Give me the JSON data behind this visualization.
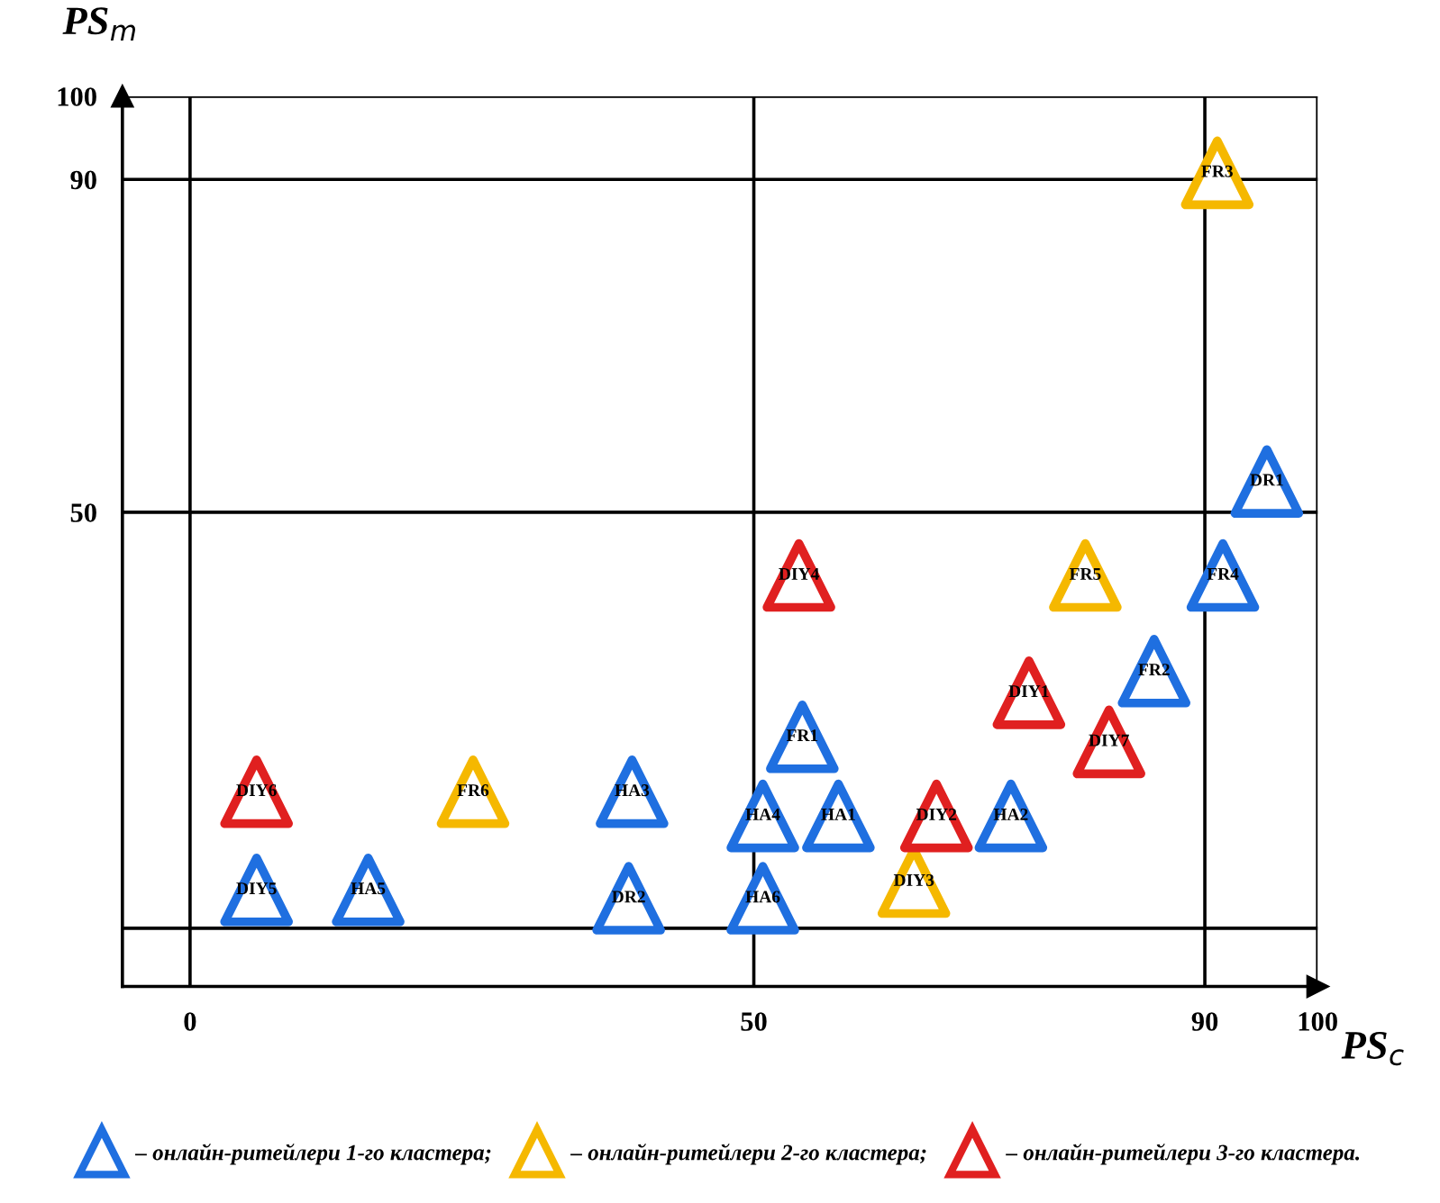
{
  "chart_data": {
    "type": "scatter",
    "xlabel": "PS$_{c}$",
    "ylabel": "PS$_{m}$",
    "xlim": [
      -6,
      100
    ],
    "ylim": [
      -7,
      100
    ],
    "xticks": [
      0,
      50,
      90,
      100
    ],
    "yticks": [
      {
        "value": 0,
        "label": null
      },
      50,
      90,
      100
    ],
    "grid": true,
    "marker": "triangle",
    "legend": "bottom",
    "series": [
      {
        "name": "– онлайн-ритейлери 1-го кластера;",
        "color": "#1f6fe0",
        "x": [
          95.5,
          91.6,
          85.5,
          54.3,
          39.2,
          50.8,
          57.5,
          72.8,
          5.9,
          15.8,
          38.9,
          50.8
        ],
        "values": [
          53.7,
          42.4,
          30.9,
          23.0,
          16.4,
          13.5,
          13.5,
          13.5,
          4.6,
          4.6,
          3.6,
          3.6
        ]
      },
      {
        "name": "– онлайн-ритейлери 2-го кластера;",
        "color": "#f5b800",
        "x": [
          91.1,
          79.4,
          25.1,
          64.2
        ],
        "values": [
          90.8,
          42.4,
          16.4,
          5.6
        ]
      },
      {
        "name": "– онлайн-ритейлери 3-го кластера.",
        "color": "#e02020",
        "x": [
          54.0,
          74.4,
          81.5,
          5.9,
          66.2
        ],
        "values": [
          42.4,
          28.3,
          22.4,
          16.4,
          13.5
        ]
      }
    ],
    "annotations": [
      {
        "text": "DR1",
        "x": 95.5,
        "y": 53.7
      },
      {
        "text": "FR4",
        "x": 91.6,
        "y": 42.4
      },
      {
        "text": "FR2",
        "x": 85.5,
        "y": 30.9
      },
      {
        "text": "FR1",
        "x": 54.3,
        "y": 23.0
      },
      {
        "text": "HA3",
        "x": 39.2,
        "y": 16.4
      },
      {
        "text": "HA4",
        "x": 50.8,
        "y": 13.5
      },
      {
        "text": "HA1",
        "x": 57.5,
        "y": 13.5
      },
      {
        "text": "HA2",
        "x": 72.8,
        "y": 13.5
      },
      {
        "text": "DIY5",
        "x": 5.9,
        "y": 4.6
      },
      {
        "text": "HA5",
        "x": 15.8,
        "y": 4.6
      },
      {
        "text": "DR2",
        "x": 38.9,
        "y": 3.6
      },
      {
        "text": "HA6",
        "x": 50.8,
        "y": 3.6
      },
      {
        "text": "FR3",
        "x": 91.1,
        "y": 90.8
      },
      {
        "text": "FR5",
        "x": 79.4,
        "y": 42.4
      },
      {
        "text": "FR6",
        "x": 25.1,
        "y": 16.4
      },
      {
        "text": "DIY3",
        "x": 64.2,
        "y": 5.6
      },
      {
        "text": "DIY4",
        "x": 54.0,
        "y": 42.4
      },
      {
        "text": "DIY1",
        "x": 74.4,
        "y": 28.3
      },
      {
        "text": "DIY7",
        "x": 81.5,
        "y": 22.4
      },
      {
        "text": "DIY6",
        "x": 5.9,
        "y": 16.4
      },
      {
        "text": "DIY2",
        "x": 66.2,
        "y": 13.5
      }
    ]
  }
}
